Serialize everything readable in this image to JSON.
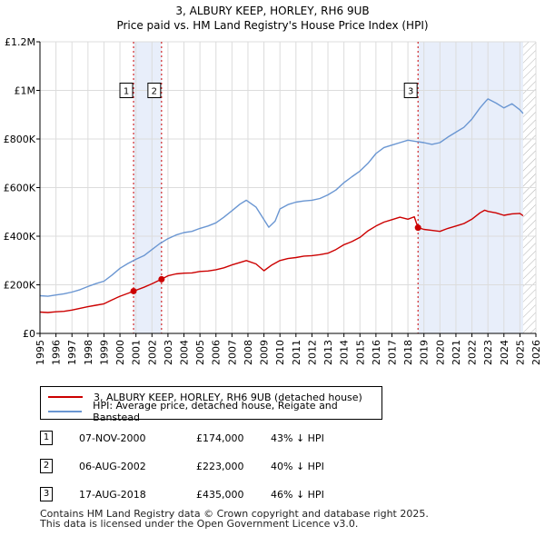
{
  "chart_data": {
    "type": "line",
    "title": "3, ALBURY KEEP, HORLEY, RH6 9UB",
    "subtitle": "Price paid vs. HM Land Registry's House Price Index (HPI)",
    "xlabel": "",
    "ylabel": "",
    "xlim": [
      1995,
      2026
    ],
    "ylim": [
      0,
      1200000
    ],
    "x_ticks": [
      "1995",
      "1996",
      "1997",
      "1998",
      "1999",
      "2000",
      "2001",
      "2002",
      "2003",
      "2004",
      "2005",
      "2006",
      "2007",
      "2008",
      "2009",
      "2010",
      "2011",
      "2012",
      "2013",
      "2014",
      "2015",
      "2016",
      "2017",
      "2018",
      "2019",
      "2020",
      "2021",
      "2022",
      "2023",
      "2024",
      "2025",
      "2026"
    ],
    "y_ticks": [
      {
        "value": 0,
        "label": "£0"
      },
      {
        "value": 200000,
        "label": "£200K"
      },
      {
        "value": 400000,
        "label": "£400K"
      },
      {
        "value": 600000,
        "label": "£600K"
      },
      {
        "value": 800000,
        "label": "£800K"
      },
      {
        "value": 1000000,
        "label": "£1M"
      },
      {
        "value": 1200000,
        "label": "£1.2M"
      }
    ],
    "grid": true,
    "series": [
      {
        "name": "3, ALBURY KEEP, HORLEY, RH6 9UB (detached house)",
        "color": "#cc0000",
        "x": [
          1995.0,
          1995.5,
          1996.0,
          1996.5,
          1997.0,
          1997.5,
          1998.0,
          1998.5,
          1999.0,
          1999.5,
          2000.0,
          2000.5,
          2000.85,
          2001.5,
          2002.0,
          2002.6,
          2003.0,
          2003.5,
          2004.0,
          2004.5,
          2005.0,
          2005.5,
          2006.0,
          2006.5,
          2007.0,
          2007.5,
          2007.9,
          2008.5,
          2009.0,
          2009.5,
          2010.0,
          2010.5,
          2011.0,
          2011.5,
          2012.0,
          2012.5,
          2013.0,
          2013.5,
          2014.0,
          2014.5,
          2015.0,
          2015.5,
          2016.0,
          2016.5,
          2017.0,
          2017.5,
          2018.0,
          2018.4,
          2018.63,
          2019.0,
          2019.5,
          2020.0,
          2020.5,
          2021.0,
          2021.5,
          2022.0,
          2022.5,
          2022.8,
          2023.0,
          2023.5,
          2024.0,
          2024.5,
          2025.0,
          2025.2
        ],
        "values": [
          88000,
          86000,
          89000,
          91000,
          96000,
          103000,
          110000,
          116000,
          122000,
          138000,
          153000,
          165000,
          174000,
          190000,
          204000,
          223000,
          237000,
          245000,
          248000,
          249000,
          255000,
          257000,
          262000,
          270000,
          282000,
          292000,
          300000,
          286000,
          258000,
          282000,
          300000,
          308000,
          312000,
          318000,
          320000,
          324000,
          330000,
          345000,
          365000,
          378000,
          395000,
          422000,
          442000,
          458000,
          468000,
          478000,
          470000,
          480000,
          435000,
          428000,
          424000,
          420000,
          432000,
          442000,
          452000,
          470000,
          496000,
          507000,
          502000,
          496000,
          486000,
          492000,
          494000,
          484000
        ]
      },
      {
        "name": "HPI: Average price, detached house, Reigate and Banstead",
        "color": "#6a96d2",
        "x": [
          1995.0,
          1995.5,
          1996.0,
          1996.5,
          1997.0,
          1997.5,
          1998.0,
          1998.5,
          1999.0,
          1999.5,
          2000.0,
          2000.5,
          2001.0,
          2001.5,
          2002.0,
          2002.5,
          2003.0,
          2003.5,
          2004.0,
          2004.5,
          2005.0,
          2005.5,
          2006.0,
          2006.5,
          2007.0,
          2007.5,
          2007.9,
          2008.5,
          2009.0,
          2009.3,
          2009.7,
          2010.0,
          2010.5,
          2011.0,
          2011.5,
          2012.0,
          2012.5,
          2013.0,
          2013.5,
          2014.0,
          2014.5,
          2015.0,
          2015.5,
          2016.0,
          2016.5,
          2017.0,
          2017.5,
          2018.0,
          2018.5,
          2019.0,
          2019.5,
          2020.0,
          2020.5,
          2021.0,
          2021.5,
          2022.0,
          2022.5,
          2022.9,
          2023.0,
          2023.5,
          2024.0,
          2024.5,
          2025.0,
          2025.2
        ],
        "values": [
          155000,
          153000,
          158000,
          163000,
          170000,
          180000,
          193000,
          205000,
          215000,
          240000,
          268000,
          288000,
          305000,
          320000,
          345000,
          370000,
          390000,
          405000,
          415000,
          420000,
          432000,
          442000,
          455000,
          478000,
          505000,
          532000,
          548000,
          520000,
          468000,
          437000,
          462000,
          512000,
          530000,
          540000,
          545000,
          548000,
          555000,
          570000,
          590000,
          620000,
          645000,
          668000,
          700000,
          740000,
          765000,
          775000,
          785000,
          795000,
          790000,
          785000,
          778000,
          785000,
          808000,
          828000,
          848000,
          882000,
          928000,
          958000,
          965000,
          948000,
          928000,
          945000,
          920000,
          905000
        ]
      }
    ],
    "sales": [
      {
        "num": "1",
        "x": 2000.85,
        "value": 174000,
        "date": "07-NOV-2000",
        "price": "£174,000",
        "hpi": "43% ↓ HPI"
      },
      {
        "num": "2",
        "x": 2002.6,
        "value": 223000,
        "date": "06-AUG-2002",
        "price": "£223,000",
        "hpi": "40% ↓ HPI"
      },
      {
        "num": "3",
        "x": 2018.63,
        "value": 435000,
        "date": "17-AUG-2018",
        "price": "£435,000",
        "hpi": "46% ↓ HPI"
      }
    ],
    "marker_label_value": 1000000,
    "highlight_spans": [
      [
        2000.85,
        2002.6
      ],
      [
        2018.63,
        2025.2
      ]
    ],
    "future_hatch_start": 2025.2,
    "colors": {
      "axis": "#000000",
      "grid": "#dcdcdc",
      "plot_bg": "#ffffff",
      "highlight": "#e8eefa",
      "vline": "#cc0000"
    }
  },
  "legend": {
    "red_label": "3, ALBURY KEEP, HORLEY, RH6 9UB (detached house)",
    "blue_label": "HPI: Average price, detached house, Reigate and Banstead",
    "red_color": "#cc0000",
    "blue_color": "#6a96d2"
  },
  "table": {
    "rows": [
      {
        "num": "1",
        "date": "07-NOV-2000",
        "price": "£174,000",
        "hpi": "43% ↓ HPI"
      },
      {
        "num": "2",
        "date": "06-AUG-2002",
        "price": "£223,000",
        "hpi": "40% ↓ HPI"
      },
      {
        "num": "3",
        "date": "17-AUG-2018",
        "price": "£435,000",
        "hpi": "46% ↓ HPI"
      }
    ]
  },
  "footer": {
    "line1": "Contains HM Land Registry data © Crown copyright and database right 2025.",
    "line2": "This data is licensed under the Open Government Licence v3.0."
  }
}
